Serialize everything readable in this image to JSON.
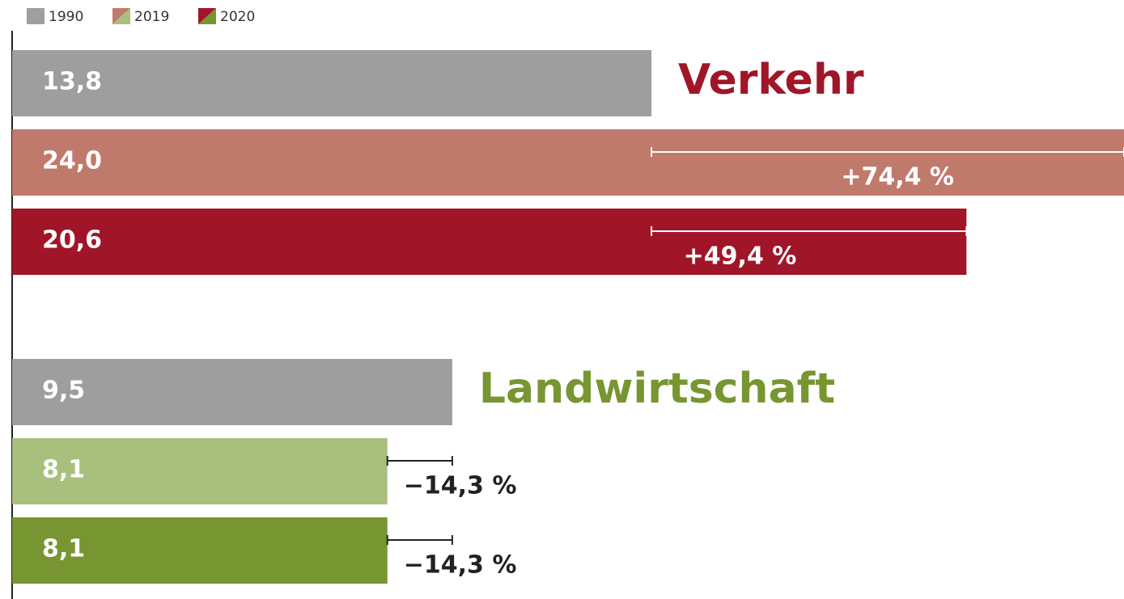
{
  "chart_data": {
    "type": "bar",
    "orientation": "horizontal",
    "legend": [
      {
        "name": "1990",
        "colors": [
          "#9e9e9e",
          "#9e9e9e"
        ]
      },
      {
        "name": "2019",
        "colors": [
          "#c07a6c",
          "#a9bf7e"
        ]
      },
      {
        "name": "2020",
        "colors": [
          "#a01628",
          "#779632"
        ]
      }
    ],
    "xlim": [
      0,
      24
    ],
    "groups": [
      {
        "name": "Verkehr",
        "color": "#a01628",
        "values": [
          13.8,
          24.0,
          20.6
        ],
        "value_labels": [
          "13,8",
          "24,0",
          "20,6"
        ],
        "colors": [
          "#9e9e9e",
          "#c07a6c",
          "#a01628"
        ],
        "change_labels": [
          "+74,4 %",
          "+49,4 %"
        ]
      },
      {
        "name": "Landwirtschaft",
        "color": "#779632",
        "values": [
          9.5,
          8.1,
          8.1
        ],
        "value_labels": [
          "9,5",
          "8,1",
          "8,1"
        ],
        "colors": [
          "#9e9e9e",
          "#a9bf7e",
          "#779632"
        ],
        "change_labels": [
          "−14,3 %",
          "−14,3 %"
        ]
      }
    ]
  }
}
